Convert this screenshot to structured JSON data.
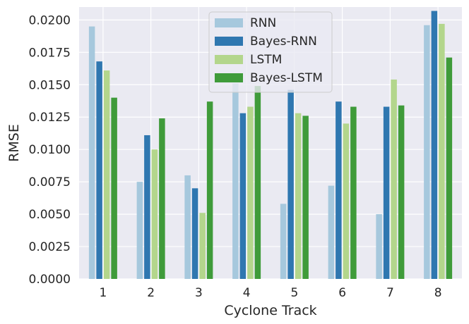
{
  "chart_data": {
    "type": "bar",
    "xlabel": "Cyclone Track",
    "ylabel": "RMSE",
    "categories": [
      "1",
      "2",
      "3",
      "4",
      "5",
      "6",
      "7",
      "8"
    ],
    "ylim": [
      0,
      0.021
    ],
    "yticks": [
      "0.0000",
      "0.0025",
      "0.0050",
      "0.0075",
      "0.0100",
      "0.0125",
      "0.0150",
      "0.0175",
      "0.0200"
    ],
    "grid": true,
    "legend_position": "top-center",
    "series": [
      {
        "name": "RNN",
        "color": "#a6c8dd",
        "values": [
          0.0195,
          0.0075,
          0.008,
          0.0151,
          0.0058,
          0.0072,
          0.005,
          0.0196
        ]
      },
      {
        "name": "Bayes-RNN",
        "color": "#2f77b0",
        "values": [
          0.0168,
          0.0111,
          0.007,
          0.0128,
          0.0146,
          0.0137,
          0.0133,
          0.0207
        ]
      },
      {
        "name": "LSTM",
        "color": "#b3d68c",
        "values": [
          0.0161,
          0.01,
          0.0051,
          0.0133,
          0.0128,
          0.012,
          0.0154,
          0.0197
        ]
      },
      {
        "name": "Bayes-LSTM",
        "color": "#3f9b3a",
        "values": [
          0.014,
          0.0124,
          0.0137,
          0.0149,
          0.0126,
          0.0133,
          0.0134,
          0.0171
        ]
      }
    ]
  }
}
